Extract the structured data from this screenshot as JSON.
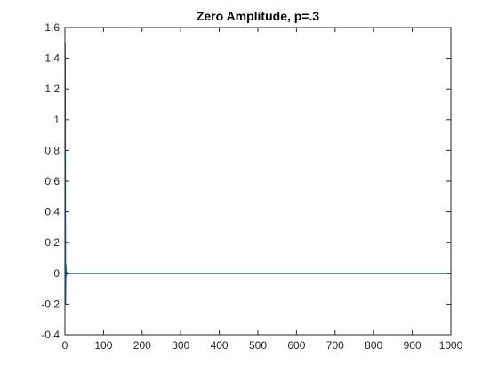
{
  "chart_data": {
    "type": "line",
    "title": "Zero Amplitude, p=.3",
    "xlabel": "",
    "ylabel": "",
    "xlim": [
      0,
      1000
    ],
    "ylim": [
      -0.4,
      1.6
    ],
    "xticks": [
      0,
      100,
      200,
      300,
      400,
      500,
      600,
      700,
      800,
      900,
      1000
    ],
    "xtick_labels": [
      "0",
      "100",
      "200",
      "300",
      "400",
      "500",
      "600",
      "700",
      "800",
      "900",
      "1000"
    ],
    "yticks": [
      -0.4,
      -0.2,
      0,
      0.2,
      0.4,
      0.6,
      0.8,
      1,
      1.2,
      1.4,
      1.6
    ],
    "ytick_labels": [
      "-0.4",
      "-0.2",
      "0",
      "0.2",
      "0.4",
      "0.6",
      "0.8",
      "1",
      "1.2",
      "1.4",
      "1.6"
    ],
    "grid": false,
    "box": true,
    "series": [
      {
        "color": "#0072bd",
        "x": [
          1,
          2,
          3,
          4,
          5,
          6,
          1000
        ],
        "y": [
          1.5,
          -0.2,
          0.06,
          -0.02,
          0.01,
          0,
          0
        ]
      }
    ]
  }
}
